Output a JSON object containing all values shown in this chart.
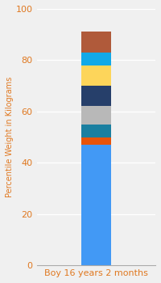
{
  "category": "Boy 16 years 2 months",
  "segments": [
    {
      "value": 47,
      "color": "#4299f5"
    },
    {
      "value": 3,
      "color": "#e8540a"
    },
    {
      "value": 5,
      "color": "#1a7fa0"
    },
    {
      "value": 7,
      "color": "#b8b8b8"
    },
    {
      "value": 8,
      "color": "#263f6a"
    },
    {
      "value": 8,
      "color": "#fdd55a"
    },
    {
      "value": 5,
      "color": "#12a9e8"
    },
    {
      "value": 8,
      "color": "#b05a3a"
    }
  ],
  "ylabel": "Percentile Weight in Kilograms",
  "ylim": [
    0,
    100
  ],
  "yticks": [
    0,
    20,
    40,
    60,
    80,
    100
  ],
  "bar_width": 0.35,
  "xlim": [
    -0.7,
    0.7
  ],
  "background_color": "#f0f0f0",
  "ylabel_color": "#e07820",
  "tick_color": "#e07820",
  "xlabel_color": "#e07820",
  "grid_color": "#ffffff",
  "ylabel_fontsize": 7,
  "tick_fontsize": 8,
  "xlabel_fontsize": 8
}
